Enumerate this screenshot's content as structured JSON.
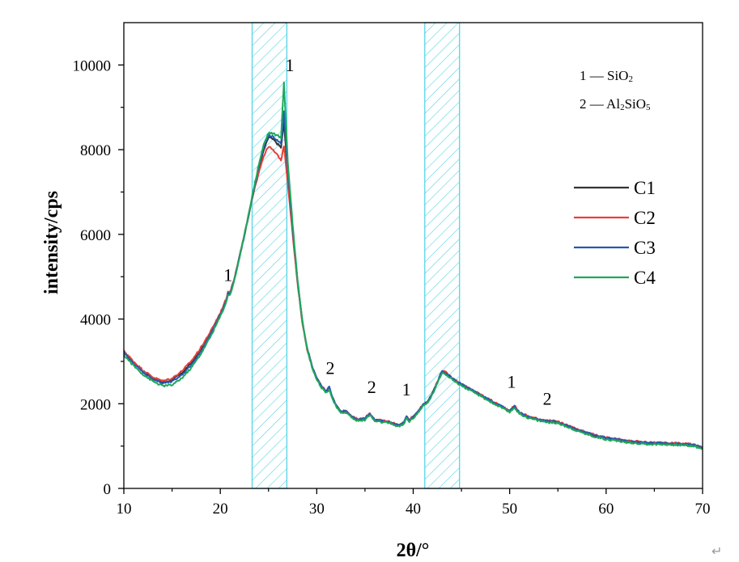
{
  "chart_data": {
    "type": "line",
    "title": "",
    "xlabel": "2θ/°",
    "ylabel": "intensity/cps",
    "xlim": [
      10,
      70
    ],
    "ylim": [
      0,
      11000
    ],
    "xticks": [
      10,
      20,
      30,
      40,
      50,
      60,
      70
    ],
    "yticks": [
      0,
      2000,
      4000,
      6000,
      8000,
      10000
    ],
    "xtick_labels": [
      "10",
      "20",
      "30",
      "40",
      "50",
      "60",
      "70"
    ],
    "ytick_labels": [
      "0",
      "2000",
      "4000",
      "6000",
      "8000",
      "10000"
    ],
    "grid": false,
    "legend_position": "right",
    "highlight_bands": [
      [
        23.3,
        26.9
      ],
      [
        41.2,
        44.8
      ]
    ],
    "phase_key": [
      {
        "line": "1 — SiO",
        "sub": "2"
      },
      {
        "line": "2 — Al",
        "sub": "2",
        "mid": "SiO",
        "sub2": "5"
      }
    ],
    "peak_labels": [
      {
        "text": "1",
        "x": 20.8,
        "y": 4900
      },
      {
        "text": "1",
        "x": 27.2,
        "y": 9850
      },
      {
        "text": "2",
        "x": 31.4,
        "y": 2700
      },
      {
        "text": "2",
        "x": 35.7,
        "y": 2250
      },
      {
        "text": "1",
        "x": 39.3,
        "y": 2200
      },
      {
        "text": "1",
        "x": 50.2,
        "y": 2380
      },
      {
        "text": "2",
        "x": 53.9,
        "y": 1980
      }
    ],
    "x": [
      10,
      11,
      12,
      13,
      14,
      15,
      16,
      17,
      18,
      19,
      20,
      20.6,
      20.8,
      21,
      21.5,
      22,
      22.5,
      23,
      23.5,
      24,
      24.5,
      25,
      25.5,
      26,
      26.3,
      26.6,
      27,
      27.5,
      28,
      28.5,
      29,
      29.5,
      30,
      30.5,
      31,
      31.3,
      31.6,
      32,
      32.5,
      33,
      33.5,
      34,
      34.5,
      35,
      35.5,
      36,
      36.5,
      37,
      37.5,
      38,
      38.5,
      39,
      39.3,
      39.6,
      40,
      40.5,
      41,
      41.5,
      42,
      42.5,
      43,
      43.5,
      44,
      44.5,
      45,
      45.5,
      46,
      46.5,
      47,
      47.5,
      48,
      48.5,
      49,
      49.5,
      50,
      50.5,
      51,
      52,
      53,
      54,
      55,
      56,
      57,
      58,
      59,
      60,
      61,
      62,
      63,
      64,
      65,
      66,
      67,
      68,
      69,
      70
    ],
    "series": [
      {
        "name": "C1",
        "color": "#333333",
        "values": [
          3230,
          2980,
          2770,
          2610,
          2510,
          2560,
          2720,
          2960,
          3280,
          3670,
          4120,
          4430,
          4620,
          4600,
          4980,
          5480,
          5980,
          6520,
          7050,
          7550,
          7980,
          8300,
          8240,
          8120,
          8050,
          8650,
          7400,
          6100,
          4900,
          3950,
          3300,
          2880,
          2600,
          2400,
          2280,
          2380,
          2150,
          1950,
          1800,
          1820,
          1720,
          1630,
          1620,
          1640,
          1760,
          1610,
          1590,
          1580,
          1560,
          1520,
          1480,
          1530,
          1680,
          1600,
          1680,
          1810,
          1960,
          2040,
          2240,
          2500,
          2760,
          2700,
          2600,
          2520,
          2450,
          2380,
          2320,
          2260,
          2200,
          2130,
          2070,
          2000,
          1950,
          1880,
          1820,
          1930,
          1780,
          1680,
          1620,
          1580,
          1560,
          1470,
          1380,
          1300,
          1230,
          1180,
          1150,
          1110,
          1090,
          1070,
          1060,
          1060,
          1050,
          1040,
          1020,
          960
        ]
      },
      {
        "name": "C2",
        "color": "#e8403a",
        "values": [
          3250,
          3000,
          2790,
          2630,
          2540,
          2600,
          2770,
          3010,
          3330,
          3710,
          4150,
          4470,
          4650,
          4630,
          5000,
          5500,
          5990,
          6520,
          7020,
          7480,
          7850,
          8080,
          7980,
          7850,
          7750,
          8100,
          7200,
          6000,
          4850,
          3920,
          3290,
          2880,
          2600,
          2420,
          2290,
          2370,
          2170,
          1970,
          1820,
          1840,
          1740,
          1650,
          1640,
          1660,
          1780,
          1630,
          1610,
          1600,
          1580,
          1540,
          1500,
          1550,
          1700,
          1620,
          1700,
          1830,
          1980,
          2060,
          2260,
          2520,
          2790,
          2720,
          2620,
          2540,
          2470,
          2400,
          2340,
          2280,
          2220,
          2150,
          2090,
          2020,
          1970,
          1900,
          1840,
          1950,
          1800,
          1700,
          1640,
          1600,
          1580,
          1490,
          1400,
          1320,
          1250,
          1200,
          1170,
          1130,
          1110,
          1090,
          1080,
          1080,
          1070,
          1060,
          1040,
          980
        ]
      },
      {
        "name": "C3",
        "color": "#2459b0",
        "values": [
          3200,
          2950,
          2740,
          2580,
          2480,
          2520,
          2680,
          2920,
          3240,
          3640,
          4100,
          4420,
          4610,
          4590,
          4970,
          5470,
          5980,
          6530,
          7080,
          7600,
          8050,
          8350,
          8300,
          8200,
          8150,
          8900,
          7500,
          6150,
          4920,
          3960,
          3320,
          2900,
          2610,
          2410,
          2290,
          2420,
          2160,
          1960,
          1810,
          1830,
          1730,
          1640,
          1630,
          1650,
          1770,
          1620,
          1600,
          1590,
          1570,
          1530,
          1490,
          1540,
          1690,
          1610,
          1690,
          1820,
          1970,
          2050,
          2250,
          2510,
          2770,
          2710,
          2610,
          2530,
          2460,
          2390,
          2330,
          2270,
          2210,
          2140,
          2080,
          2010,
          1960,
          1890,
          1830,
          1950,
          1790,
          1690,
          1630,
          1590,
          1570,
          1480,
          1390,
          1310,
          1240,
          1190,
          1160,
          1120,
          1100,
          1080,
          1070,
          1070,
          1060,
          1050,
          1030,
          970
        ]
      },
      {
        "name": "C4",
        "color": "#1fa85a",
        "values": [
          3150,
          2900,
          2690,
          2530,
          2420,
          2440,
          2600,
          2850,
          3180,
          3590,
          4060,
          4380,
          4580,
          4560,
          4950,
          5460,
          5990,
          6560,
          7120,
          7660,
          8120,
          8400,
          8380,
          8320,
          8280,
          9600,
          7700,
          6250,
          4950,
          3970,
          3300,
          2870,
          2580,
          2380,
          2260,
          2340,
          2130,
          1930,
          1780,
          1800,
          1700,
          1610,
          1600,
          1620,
          1740,
          1590,
          1570,
          1560,
          1540,
          1500,
          1460,
          1510,
          1660,
          1580,
          1660,
          1790,
          1940,
          2020,
          2220,
          2480,
          2740,
          2680,
          2580,
          2500,
          2430,
          2360,
          2300,
          2240,
          2180,
          2110,
          2050,
          1980,
          1930,
          1860,
          1800,
          1910,
          1760,
          1660,
          1600,
          1560,
          1540,
          1450,
          1360,
          1280,
          1210,
          1160,
          1130,
          1090,
          1070,
          1050,
          1040,
          1040,
          1030,
          1020,
          1000,
          940
        ]
      }
    ]
  },
  "corner_mark": "↵"
}
